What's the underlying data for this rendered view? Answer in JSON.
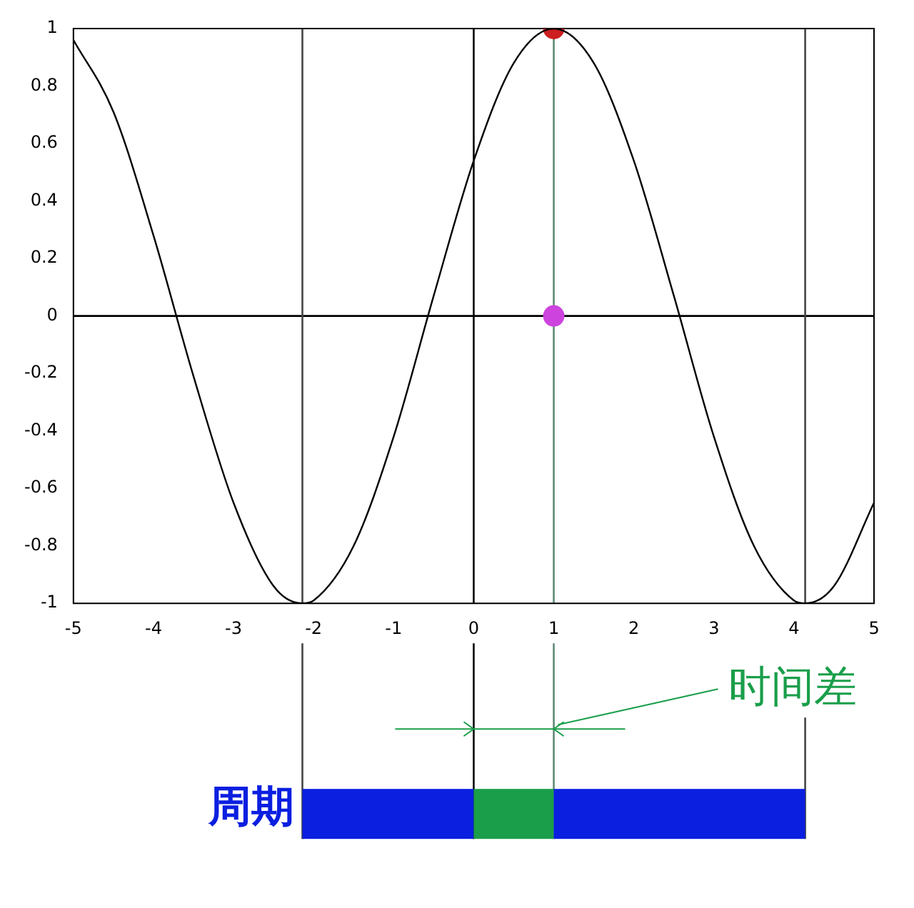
{
  "chart_data": {
    "type": "line",
    "legend": false,
    "grid": false,
    "xlim": [
      -5,
      5
    ],
    "xticks": [
      -5,
      -4,
      -3,
      -2,
      -1,
      0,
      1,
      2,
      3,
      4,
      5
    ],
    "ylim": [
      -1,
      1
    ],
    "yticks": [
      -1,
      -0.8,
      -0.6,
      -0.4,
      -0.2,
      0,
      0.2,
      0.4,
      0.6,
      0.8,
      1
    ],
    "series": [
      {
        "color": "#000000",
        "marker": "none",
        "line_style": "solid",
        "x": [
          -5,
          -4.5,
          -4,
          -3.5,
          -3,
          -2.5,
          -2.14,
          -2,
          -1.5,
          -1,
          -0.5,
          0,
          0.5,
          1,
          1.5,
          2,
          2.5,
          3,
          3.5,
          4,
          4.14,
          4.5,
          5
        ],
        "values": [
          0.96,
          0.71,
          0.28,
          -0.21,
          -0.65,
          -0.94,
          -1,
          -0.99,
          -0.8,
          -0.42,
          0.07,
          0.54,
          0.88,
          1,
          0.88,
          0.54,
          0.07,
          -0.42,
          -0.8,
          -0.99,
          -1,
          -0.94,
          -0.65
        ]
      },
      {
        "type": "scatter",
        "marker": "circle",
        "x": [
          1,
          1
        ],
        "values": [
          1,
          0
        ],
        "colors": [
          "#cc1f1f",
          "#cc44dd"
        ]
      }
    ],
    "ref_lines": [
      {
        "axis": "y",
        "value": 0,
        "color": "#000000"
      },
      {
        "axis": "x",
        "value": 0,
        "color": "#000000"
      },
      {
        "axis": "x",
        "value": 1,
        "color": "#5f8a76"
      },
      {
        "axis": "x",
        "value": -2.14,
        "color": "#444444"
      },
      {
        "axis": "x",
        "value": 4.14,
        "color": "#444444"
      }
    ],
    "annotations": [
      "周期",
      "时间差"
    ]
  }
}
